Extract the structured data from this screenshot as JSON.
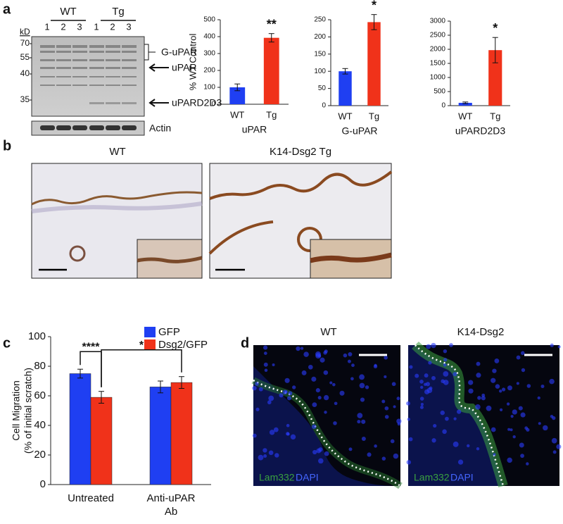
{
  "panels": [
    "a",
    "b",
    "c",
    "d"
  ],
  "blot": {
    "unit": "kD",
    "groups": [
      "WT",
      "Tg"
    ],
    "lanes": [
      "1",
      "2",
      "3",
      "1",
      "2",
      "3"
    ],
    "markers": [
      70,
      55,
      40,
      35
    ],
    "bands": [
      "G-uPAR",
      "uPAR",
      "uPARD2D3"
    ],
    "loading": "Actin"
  },
  "histology": {
    "titles": [
      "WT",
      "K14-Dsg2 Tg"
    ]
  },
  "fluorescence": {
    "titles": [
      "WT",
      "K14-Dsg2"
    ],
    "stains": [
      "Lam332",
      "DAPI"
    ]
  },
  "chart_data": [
    {
      "type": "bar",
      "ylabel": "% WT Control",
      "xlabel": "uPAR",
      "categories": [
        "WT",
        "Tg"
      ],
      "values": [
        100,
        393
      ],
      "errors": [
        20,
        25
      ],
      "colors": [
        "#1f3ff2",
        "#f0321a"
      ],
      "ylim": [
        0,
        500
      ],
      "yticks": [
        0,
        100,
        200,
        300,
        400,
        500
      ],
      "annotations": [
        "**"
      ]
    },
    {
      "type": "bar",
      "xlabel": "G-uPAR",
      "categories": [
        "WT",
        "Tg"
      ],
      "values": [
        100,
        243
      ],
      "errors": [
        8,
        22
      ],
      "colors": [
        "#1f3ff2",
        "#f0321a"
      ],
      "ylim": [
        0,
        250
      ],
      "yticks": [
        0,
        50,
        100,
        150,
        200,
        250
      ],
      "annotations": [
        "*"
      ]
    },
    {
      "type": "bar",
      "xlabel": "uPARD2D3",
      "categories": [
        "WT",
        "Tg"
      ],
      "values": [
        100,
        1970
      ],
      "errors": [
        30,
        450
      ],
      "colors": [
        "#1f3ff2",
        "#f0321a"
      ],
      "ylim": [
        0,
        3000
      ],
      "yticks": [
        0,
        500,
        1000,
        1500,
        2000,
        2500,
        3000
      ],
      "annotations": [
        "*"
      ]
    },
    {
      "type": "grouped_bar",
      "ylabel": [
        "Cell Migration",
        "(% of initial scratch)"
      ],
      "categories": [
        [
          "Untreated"
        ],
        [
          "Anti-uPAR",
          "Ab"
        ]
      ],
      "series": [
        {
          "name": "GFP",
          "color": "#1f3ff2",
          "values": [
            75,
            66
          ],
          "errors": [
            3,
            4
          ]
        },
        {
          "name": "Dsg2/GFP",
          "color": "#f0321a",
          "values": [
            59,
            69
          ],
          "errors": [
            4,
            4
          ]
        }
      ],
      "ylim": [
        0,
        100
      ],
      "yticks": [
        0,
        20,
        40,
        60,
        80,
        100
      ],
      "annotations": [
        "****",
        "*"
      ]
    }
  ]
}
